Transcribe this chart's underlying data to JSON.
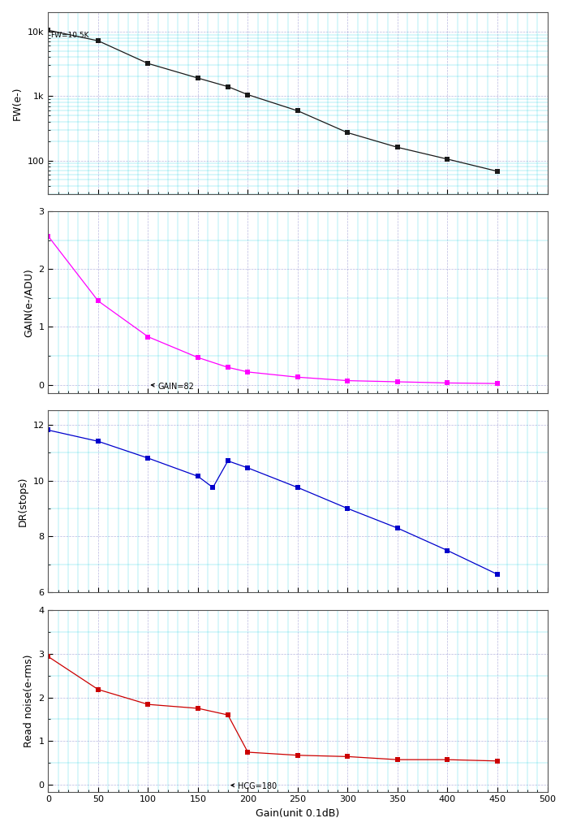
{
  "fw_x": [
    0,
    50,
    100,
    150,
    180,
    200,
    250,
    300,
    350,
    400,
    450
  ],
  "fw_y": [
    10500,
    7200,
    3200,
    1900,
    1400,
    1050,
    590,
    270,
    160,
    105,
    68
  ],
  "fw_label": "FW=10.5K",
  "gain_x": [
    0,
    50,
    100,
    150,
    180,
    200,
    250,
    300,
    350,
    400,
    450
  ],
  "gain_y": [
    2.57,
    1.45,
    0.83,
    0.47,
    0.3,
    0.22,
    0.13,
    0.07,
    0.05,
    0.03,
    0.02
  ],
  "gain_annotation": "GAIN=82",
  "dr_x": [
    0,
    50,
    100,
    150,
    180,
    200,
    250,
    300,
    350,
    400,
    450
  ],
  "dr_y": [
    11.8,
    11.4,
    10.8,
    10.15,
    9.75,
    10.7,
    10.45,
    9.75,
    9.0,
    8.3,
    7.5,
    6.65
  ],
  "dr_x_full": [
    0,
    50,
    100,
    150,
    165,
    180,
    200,
    250,
    300,
    350,
    400,
    450
  ],
  "rn_x": [
    0,
    50,
    100,
    150,
    180,
    200,
    250,
    300,
    350,
    400,
    450
  ],
  "rn_y": [
    2.93,
    2.18,
    1.84,
    1.75,
    1.6,
    0.75,
    0.68,
    0.65,
    0.58,
    0.58,
    0.55
  ],
  "rn_annotation": "HCG=180",
  "xlabel": "Gain(unit 0.1dB)",
  "fw_ylabel": "FW(e-)",
  "gain_ylabel": "GAIN(e-/ADU)",
  "dr_ylabel": "DR(stops)",
  "rn_ylabel": "Read noise(e-rms)",
  "color_fw": "#1a1a1a",
  "color_gain": "#FF00FF",
  "color_dr": "#0000CC",
  "color_rn": "#CC0000",
  "bg_color": "#ffffff",
  "ax_bg_color": "#ffffff",
  "grid_cyan_color": "#00CCDD",
  "grid_blue_color": "#8888CC",
  "xlim": [
    0,
    500
  ],
  "xticks": [
    0,
    50,
    100,
    150,
    200,
    250,
    300,
    350,
    400,
    450,
    500
  ],
  "fw_ylim": [
    30,
    20000
  ],
  "gain_ylim": [
    -0.15,
    3.0
  ],
  "gain_yticks": [
    0,
    1,
    2,
    3
  ],
  "dr_ylim": [
    6,
    12.5
  ],
  "dr_yticks": [
    6,
    8,
    10,
    12
  ],
  "rn_ylim": [
    -0.15,
    4.0
  ],
  "rn_yticks": [
    0,
    1,
    2,
    3,
    4
  ]
}
